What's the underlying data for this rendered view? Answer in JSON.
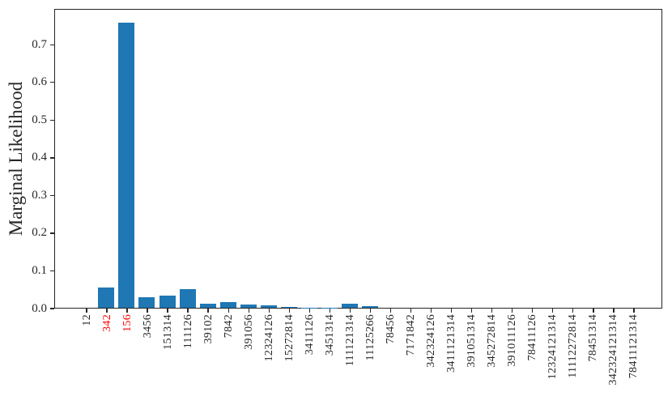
{
  "figure": {
    "background": "#ffffff"
  },
  "chart_data": {
    "type": "bar",
    "title": "",
    "xlabel": "",
    "ylabel": "Marginal Likelihood",
    "grid": "off",
    "legend": "none",
    "ylim": [
      0,
      0.795
    ],
    "ytick_labels": [
      "0.0",
      "0.1",
      "0.2",
      "0.3",
      "0.4",
      "0.5",
      "0.6",
      "0.7"
    ],
    "categories": [
      "12",
      "342",
      "156",
      "3456",
      "151314",
      "111126",
      "39102",
      "7842",
      "391056",
      "12324126",
      "15272814",
      "3411126",
      "3451314",
      "111121314",
      "11125266",
      "78456",
      "7171842",
      "342324126",
      "3411121314",
      "391051314",
      "345272814",
      "391011126",
      "78411126",
      "12324121314",
      "11112272814",
      "78451314",
      "342324121314",
      "78411121314"
    ],
    "values": [
      0,
      0.054,
      0.757,
      0.027,
      0.032,
      0.05,
      0.011,
      0.015,
      0.008,
      0.006,
      0.002,
      0.001,
      0.001,
      0.01,
      0.005,
      0,
      0,
      0,
      0,
      0,
      0,
      0,
      0,
      0,
      0,
      0,
      0,
      0
    ],
    "highlighted_categories": [
      "342",
      "156"
    ],
    "colors": {
      "bar": "#1f77b4",
      "highlight_label": "#ff0000",
      "tick_label": "#262626",
      "spine": "#262626"
    }
  }
}
